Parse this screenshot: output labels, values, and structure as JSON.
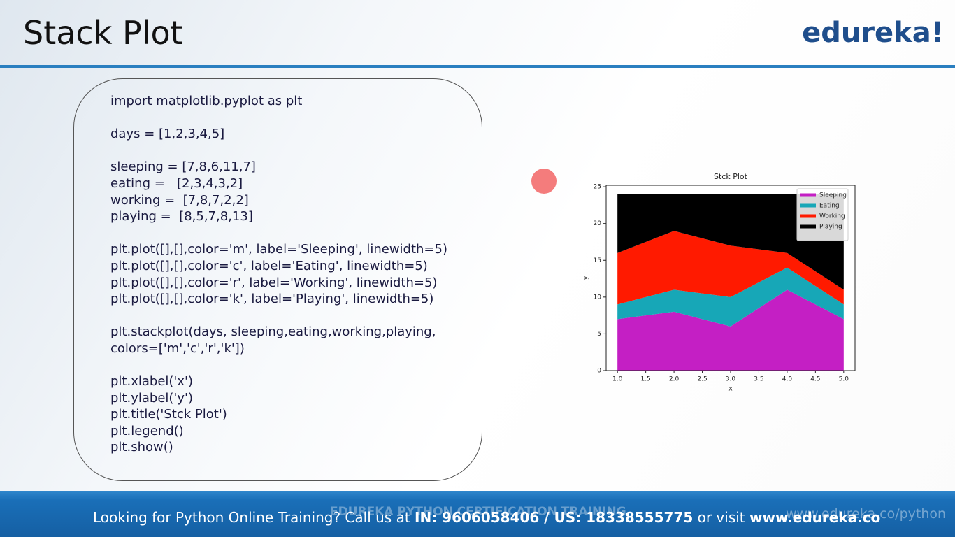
{
  "header": {
    "title": "Stack Plot",
    "logo": "edureka!"
  },
  "code": {
    "blocks": [
      [
        "import matplotlib.pyplot as plt"
      ],
      [
        "days = [1,2,3,4,5]"
      ],
      [
        "sleeping = [7,8,6,11,7]",
        "eating =   [2,3,4,3,2]",
        "working =  [7,8,7,2,2]",
        "playing =  [8,5,7,8,13]"
      ],
      [
        "plt.plot([],[],color='m', label='Sleeping', linewidth=5)",
        "plt.plot([],[],color='c', label='Eating', linewidth=5)",
        "plt.plot([],[],color='r', label='Working', linewidth=5)",
        "plt.plot([],[],color='k', label='Playing', linewidth=5)"
      ],
      [
        "plt.stackplot(days, sleeping,eating,working,playing,",
        "colors=['m','c','r','k'])"
      ],
      [
        "plt.xlabel('x')",
        "plt.ylabel('y')",
        "plt.title('Stck Plot')",
        "plt.legend()",
        "plt.show()"
      ]
    ]
  },
  "chart_data": {
    "type": "stackplot",
    "title": "Stck Plot",
    "x_label": "x",
    "y_label": "y",
    "x": [
      1,
      2,
      3,
      4,
      5
    ],
    "series": [
      {
        "name": "Sleeping",
        "color": "#c41fc4",
        "values": [
          7,
          8,
          6,
          11,
          7
        ]
      },
      {
        "name": "Eating",
        "color": "#17a7b7",
        "values": [
          2,
          3,
          4,
          3,
          2
        ]
      },
      {
        "name": "Working",
        "color": "#ff1a00",
        "values": [
          7,
          8,
          7,
          2,
          2
        ]
      },
      {
        "name": "Playing",
        "color": "#000000",
        "values": [
          8,
          5,
          7,
          8,
          13
        ]
      }
    ],
    "xlim": [
      0.8,
      5.2
    ],
    "xticks": [
      {
        "value": 1,
        "label": "1.0"
      },
      {
        "value": 1.5,
        "label": "1.5"
      },
      {
        "value": 2,
        "label": "2.0"
      },
      {
        "value": 2.5,
        "label": "2.5"
      },
      {
        "value": 3,
        "label": "3.0"
      },
      {
        "value": 3.5,
        "label": "3.5"
      },
      {
        "value": 4,
        "label": "4.0"
      },
      {
        "value": 4.5,
        "label": "4.5"
      },
      {
        "value": 5,
        "label": "5.0"
      }
    ],
    "ylim": [
      0,
      25.2
    ],
    "yticks": [
      0,
      5,
      10,
      15,
      20,
      25
    ],
    "legend": "upper right"
  },
  "watermark": {
    "course": "EDUREKA PYTHON CERTIFICATION TRAINING",
    "url": "www.edureka.co/python"
  },
  "footer": {
    "segments": [
      {
        "text": "Looking for Python Online Training? Call us at ",
        "bold": false
      },
      {
        "text": "IN: 9606058406 / US: 18338555775",
        "bold": true
      },
      {
        "text": " or visit ",
        "bold": false
      },
      {
        "text": "www.edureka.co",
        "bold": true
      }
    ]
  }
}
